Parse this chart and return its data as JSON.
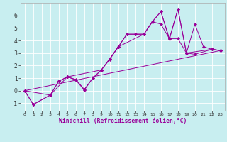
{
  "xlabel": "Windchill (Refroidissement éolien,°C)",
  "bg_color": "#c8eef0",
  "line_color": "#990099",
  "grid_color": "#ffffff",
  "xlim": [
    -0.5,
    23.5
  ],
  "ylim": [
    -1.6,
    7.0
  ],
  "yticks": [
    -1,
    0,
    1,
    2,
    3,
    4,
    5,
    6
  ],
  "xticks": [
    0,
    1,
    2,
    3,
    4,
    5,
    6,
    7,
    8,
    9,
    10,
    11,
    12,
    13,
    14,
    15,
    16,
    17,
    18,
    19,
    20,
    21,
    22,
    23
  ],
  "line1_x": [
    0,
    1,
    3,
    4,
    5,
    6,
    7,
    8,
    9,
    10,
    11,
    12,
    13,
    14,
    15,
    16,
    17,
    18,
    19,
    20,
    21,
    22,
    23
  ],
  "line1_y": [
    0,
    -1.1,
    -0.35,
    0.75,
    1.1,
    0.9,
    0.1,
    1.0,
    1.65,
    2.5,
    3.5,
    4.5,
    4.5,
    4.5,
    5.5,
    6.3,
    4.1,
    6.5,
    3.0,
    5.3,
    3.5,
    3.3,
    3.2
  ],
  "line2_x": [
    0,
    1,
    3,
    4,
    5,
    6,
    7,
    8,
    9,
    10,
    11,
    12,
    13,
    14,
    15,
    16,
    17,
    18,
    19,
    22,
    23
  ],
  "line2_y": [
    0,
    -1.1,
    -0.35,
    0.75,
    1.1,
    0.85,
    0.05,
    1.0,
    1.65,
    2.55,
    3.5,
    4.5,
    4.5,
    4.5,
    5.5,
    6.3,
    4.15,
    6.5,
    3.0,
    3.3,
    3.2
  ],
  "line3_x": [
    0,
    3,
    5,
    9,
    10,
    11,
    14,
    15,
    16,
    17,
    18,
    19,
    20,
    22,
    23
  ],
  "line3_y": [
    0,
    -0.35,
    1.1,
    1.65,
    2.55,
    3.5,
    4.5,
    5.5,
    5.3,
    4.15,
    4.15,
    3.0,
    2.9,
    3.3,
    3.2
  ],
  "line4_x": [
    0,
    23
  ],
  "line4_y": [
    0,
    3.2
  ]
}
